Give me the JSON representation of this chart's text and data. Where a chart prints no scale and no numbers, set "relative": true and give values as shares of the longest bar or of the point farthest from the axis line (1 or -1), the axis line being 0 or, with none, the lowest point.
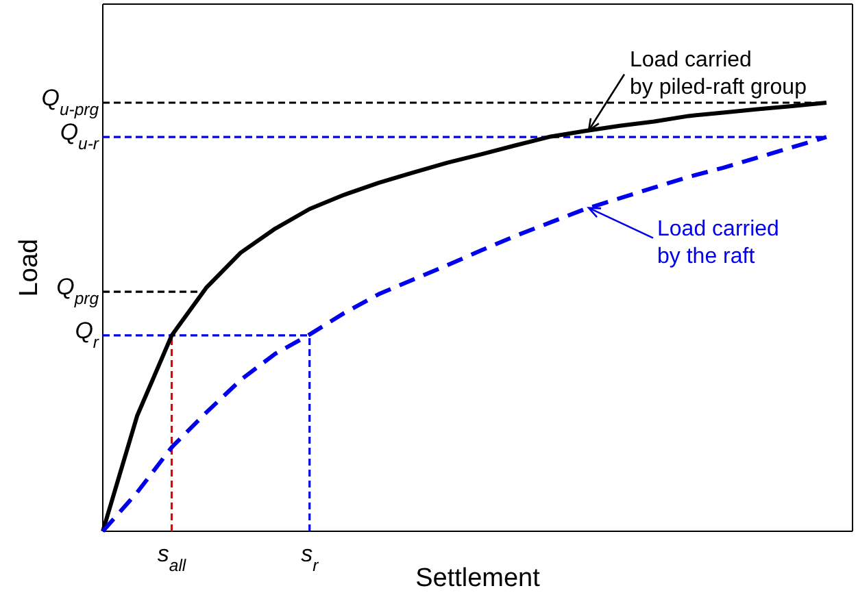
{
  "chart_data": {
    "type": "line",
    "relative": true,
    "xlabel": "Settlement",
    "ylabel": "Load",
    "categories": [
      null,
      null,
      "s$_{all}$",
      null,
      null,
      null,
      "s$_{r}$",
      null,
      null,
      null,
      null,
      null,
      null,
      null,
      null,
      null,
      null,
      null,
      null,
      null,
      null,
      null
    ],
    "series": [
      {
        "color": "#000000",
        "line_style": "solid",
        "values": [
          0,
          0.27,
          0.457,
          0.568,
          0.65,
          0.706,
          0.752,
          0.785,
          0.813,
          0.837,
          0.86,
          0.88,
          0.901,
          0.921,
          0.934,
          0.946,
          0.956,
          0.969,
          0.977,
          0.985,
          0.992,
          1
        ]
      },
      {
        "color": "#0000ee",
        "line_style": "dashed",
        "values": [
          0,
          0.091,
          0.196,
          0.277,
          0.353,
          0.414,
          0.459,
          0.509,
          0.553,
          0.587,
          0.621,
          0.656,
          0.69,
          0.721,
          0.752,
          0.777,
          0.802,
          0.827,
          0.848,
          0.872,
          0.896,
          0.92
        ]
      }
    ],
    "ref_lines": [
      {
        "axis": "y",
        "value": 1,
        "label": "Q$_{u-prg}$",
        "color": "#000000",
        "line_style": "dashed"
      },
      {
        "axis": "y",
        "value": 0.92,
        "label": "Q$_{u-r}$",
        "color": "#0000ee",
        "line_style": "dashed"
      },
      {
        "axis": "y",
        "value": 0.559,
        "label": "Q$_{prg}$",
        "color": "#000000",
        "line_style": "dashed"
      },
      {
        "axis": "y",
        "value": 0.457,
        "label": "Q$_{r}$",
        "color": "#0000ee",
        "line_style": "dashed"
      },
      {
        "axis": "x",
        "value": "s$_{all}$",
        "color": "#ee0000",
        "line_style": "dashed"
      },
      {
        "axis": "x",
        "value": "s$_{r}$",
        "color": "#0000ee",
        "line_style": "dashed"
      }
    ],
    "annotations": [
      "Load carried\nby piled-raft group",
      "Load carried\nby the raft"
    ]
  }
}
